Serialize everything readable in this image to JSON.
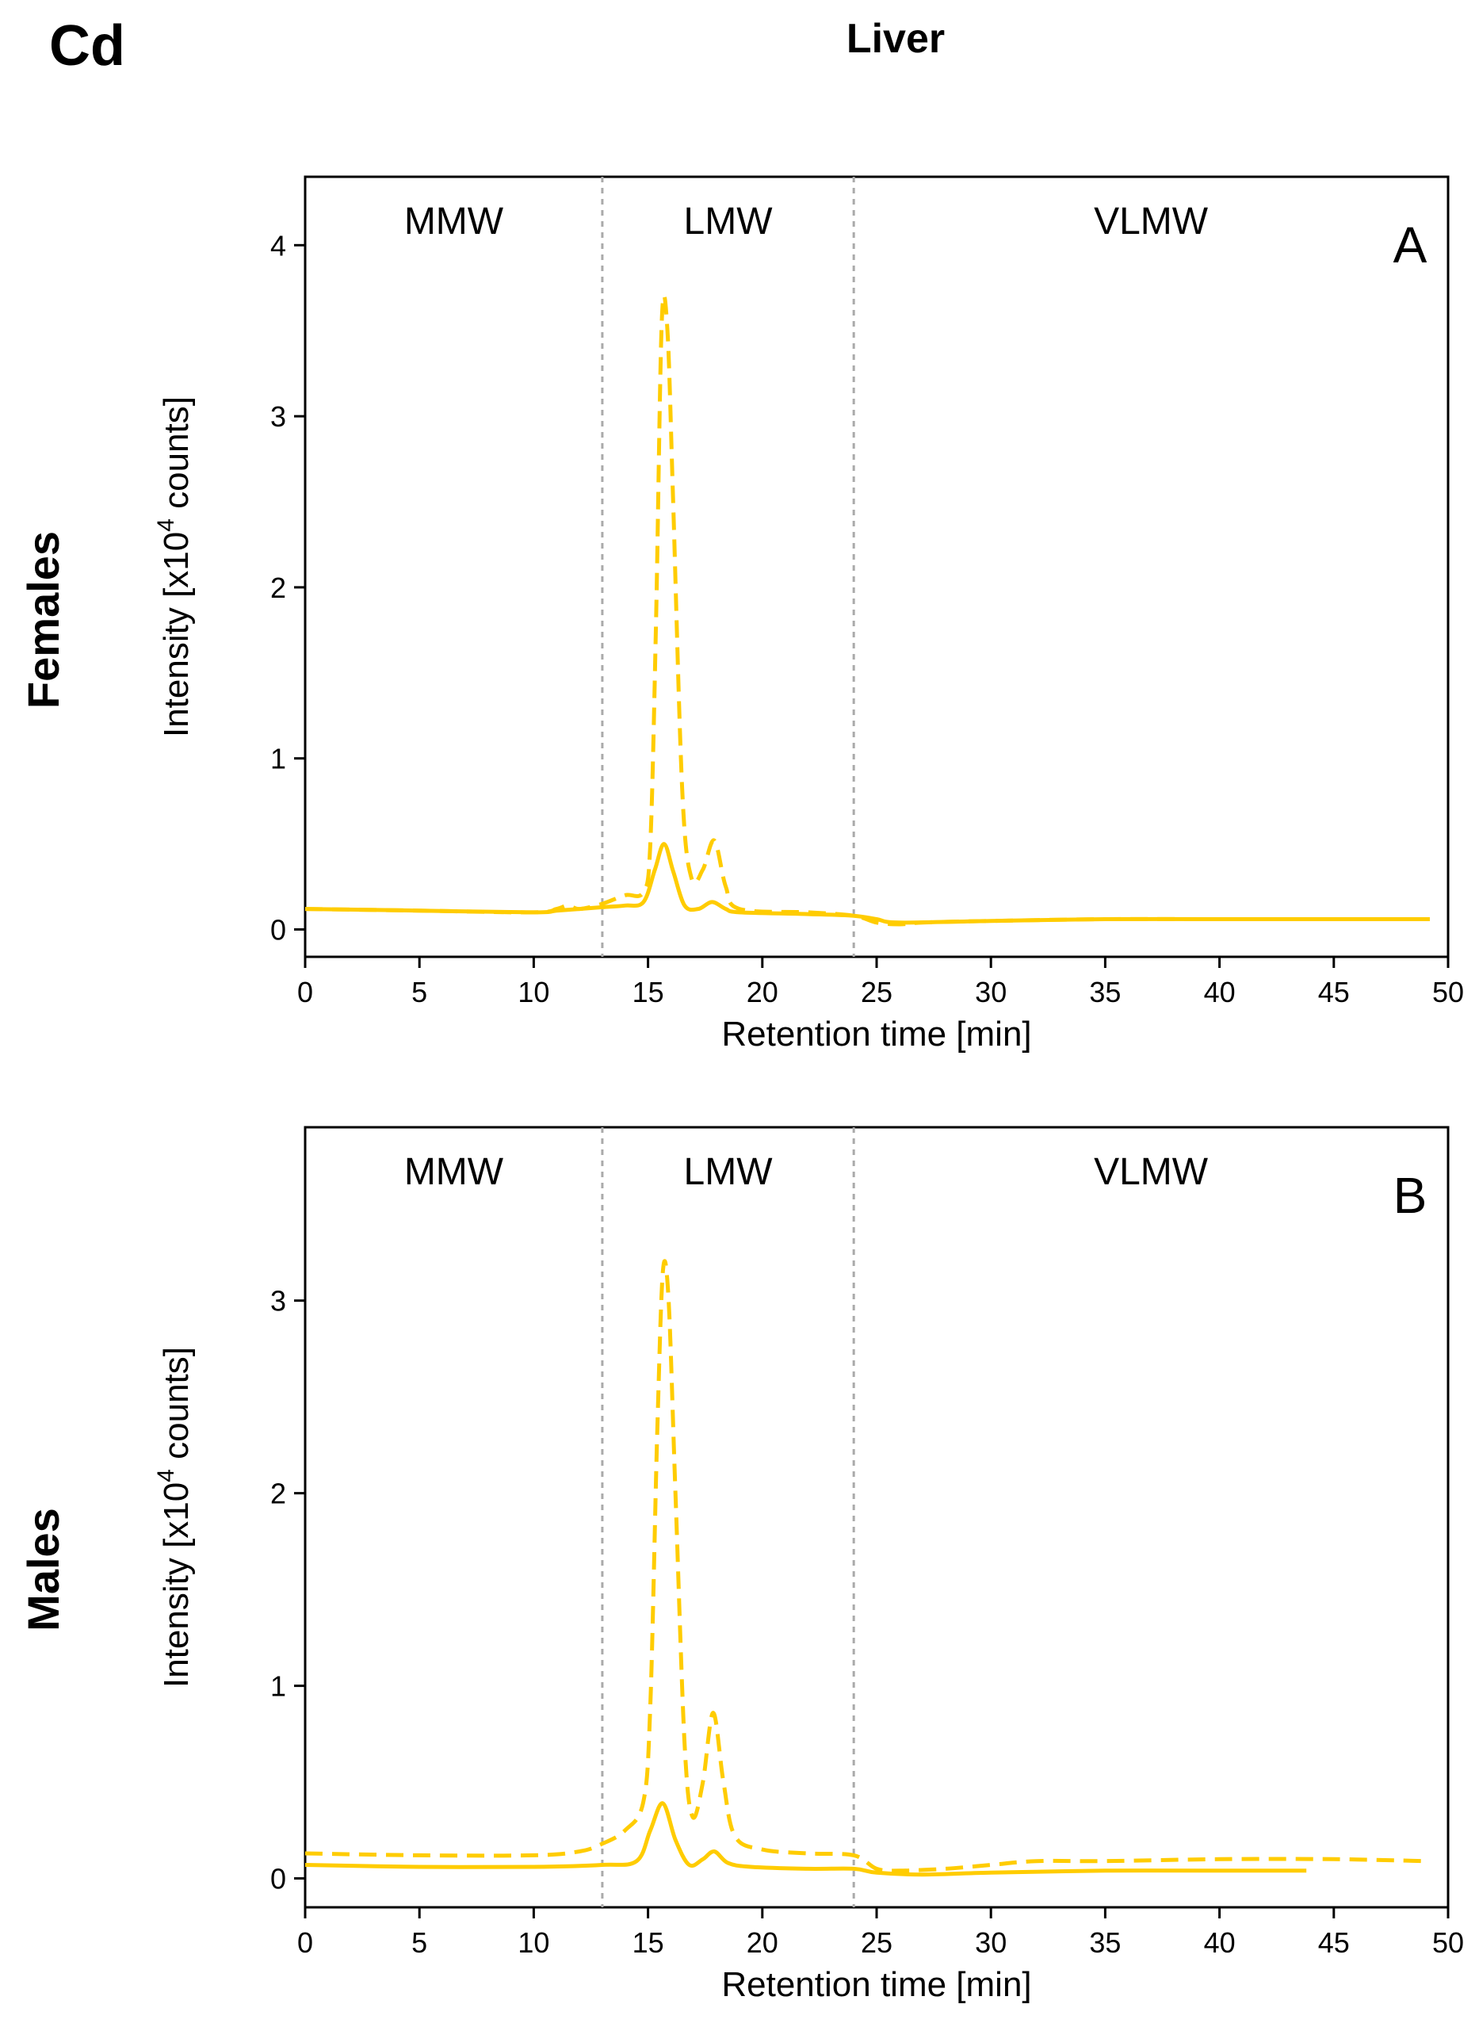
{
  "figure": {
    "element_label": "Cd",
    "organ_title": "Liver",
    "row_labels": [
      "Females",
      "Males"
    ]
  },
  "colors": {
    "line": "#FFCC00",
    "divider": "#AAAAAA",
    "axis": "#000000"
  },
  "chart_data": [
    {
      "type": "line",
      "panel_letter": "A",
      "xlabel": "Retention time [min]",
      "ylabel": "Intensity [x10",
      "ylabel_sup": "4",
      "ylabel_end": " counts]",
      "xlim": [
        0,
        50
      ],
      "ylim": [
        -0.16,
        4.4
      ],
      "x_ticks": [
        0,
        5,
        10,
        15,
        20,
        25,
        30,
        35,
        40,
        45,
        50
      ],
      "y_ticks": [
        0,
        1,
        2,
        3,
        4
      ],
      "regions": [
        {
          "label": "MMW",
          "from": 0,
          "to": 13
        },
        {
          "label": "LMW",
          "from": 13,
          "to": 24
        },
        {
          "label": "VLMW",
          "from": 24,
          "to": 50
        }
      ],
      "dividers": [
        13,
        24
      ],
      "series": [
        {
          "name": "solid",
          "style": "solid",
          "points": [
            [
              0,
              0.12
            ],
            [
              5,
              0.11
            ],
            [
              10,
              0.1
            ],
            [
              11,
              0.11
            ],
            [
              12,
              0.12
            ],
            [
              13,
              0.13
            ],
            [
              14,
              0.14
            ],
            [
              14.8,
              0.16
            ],
            [
              15.3,
              0.35
            ],
            [
              15.7,
              0.5
            ],
            [
              16.1,
              0.34
            ],
            [
              16.6,
              0.14
            ],
            [
              17.2,
              0.12
            ],
            [
              17.8,
              0.16
            ],
            [
              18.4,
              0.12
            ],
            [
              19,
              0.1
            ],
            [
              22,
              0.09
            ],
            [
              24,
              0.08
            ],
            [
              25,
              0.06
            ],
            [
              26,
              0.04
            ],
            [
              30,
              0.05
            ],
            [
              35,
              0.06
            ],
            [
              40,
              0.06
            ],
            [
              45,
              0.06
            ],
            [
              49.2,
              0.06
            ]
          ]
        },
        {
          "name": "dashed",
          "style": "dashed",
          "points": [
            [
              0,
              0.12
            ],
            [
              5,
              0.11
            ],
            [
              10,
              0.1
            ],
            [
              11,
              0.12
            ],
            [
              11.5,
              0.14
            ],
            [
              12,
              0.12
            ],
            [
              13,
              0.15
            ],
            [
              14,
              0.2
            ],
            [
              14.8,
              0.22
            ],
            [
              15.1,
              0.5
            ],
            [
              15.35,
              1.8
            ],
            [
              15.6,
              3.55
            ],
            [
              15.85,
              3.5
            ],
            [
              16.1,
              2.5
            ],
            [
              16.5,
              0.8
            ],
            [
              16.9,
              0.3
            ],
            [
              17.4,
              0.35
            ],
            [
              17.9,
              0.52
            ],
            [
              18.4,
              0.25
            ],
            [
              19,
              0.12
            ],
            [
              22,
              0.1
            ],
            [
              24,
              0.08
            ],
            [
              25,
              0.04
            ],
            [
              26,
              0.03
            ],
            [
              27,
              0.04
            ],
            [
              30,
              0.05
            ],
            [
              35,
              0.06
            ],
            [
              40,
              0.06
            ],
            [
              45,
              0.06
            ],
            [
              49.2,
              0.06
            ]
          ]
        }
      ]
    },
    {
      "type": "line",
      "panel_letter": "B",
      "xlabel": "Retention time [min]",
      "ylabel": "Intensity [x10",
      "ylabel_sup": "4",
      "ylabel_end": " counts]",
      "xlim": [
        0,
        50
      ],
      "ylim": [
        -0.15,
        3.9
      ],
      "x_ticks": [
        0,
        5,
        10,
        15,
        20,
        25,
        30,
        35,
        40,
        45,
        50
      ],
      "y_ticks": [
        0,
        1,
        2,
        3
      ],
      "regions": [
        {
          "label": "MMW",
          "from": 0,
          "to": 13
        },
        {
          "label": "LMW",
          "from": 13,
          "to": 24
        },
        {
          "label": "VLMW",
          "from": 24,
          "to": 50
        }
      ],
      "dividers": [
        13,
        24
      ],
      "series": [
        {
          "name": "solid",
          "style": "solid",
          "points": [
            [
              0,
              0.07
            ],
            [
              5,
              0.06
            ],
            [
              10,
              0.06
            ],
            [
              13,
              0.07
            ],
            [
              14.5,
              0.09
            ],
            [
              15.1,
              0.25
            ],
            [
              15.65,
              0.39
            ],
            [
              16.2,
              0.2
            ],
            [
              16.8,
              0.07
            ],
            [
              17.4,
              0.1
            ],
            [
              17.9,
              0.14
            ],
            [
              18.5,
              0.08
            ],
            [
              19.5,
              0.06
            ],
            [
              22,
              0.05
            ],
            [
              24,
              0.05
            ],
            [
              25,
              0.03
            ],
            [
              27,
              0.02
            ],
            [
              30,
              0.03
            ],
            [
              35,
              0.04
            ],
            [
              40,
              0.04
            ],
            [
              43.8,
              0.04
            ]
          ]
        },
        {
          "name": "dashed",
          "style": "dashed",
          "points": [
            [
              0,
              0.13
            ],
            [
              5,
              0.12
            ],
            [
              10,
              0.12
            ],
            [
              12,
              0.14
            ],
            [
              13,
              0.18
            ],
            [
              14,
              0.25
            ],
            [
              14.8,
              0.4
            ],
            [
              15.1,
              0.9
            ],
            [
              15.4,
              2.3
            ],
            [
              15.65,
              3.15
            ],
            [
              15.9,
              3.0
            ],
            [
              16.2,
              2.0
            ],
            [
              16.6,
              0.7
            ],
            [
              16.95,
              0.32
            ],
            [
              17.4,
              0.5
            ],
            [
              17.85,
              0.86
            ],
            [
              18.3,
              0.5
            ],
            [
              18.8,
              0.22
            ],
            [
              20,
              0.15
            ],
            [
              22,
              0.13
            ],
            [
              24,
              0.12
            ],
            [
              25,
              0.05
            ],
            [
              26,
              0.04
            ],
            [
              28,
              0.05
            ],
            [
              30,
              0.07
            ],
            [
              32,
              0.09
            ],
            [
              35,
              0.09
            ],
            [
              40,
              0.1
            ],
            [
              45,
              0.1
            ],
            [
              49,
              0.09
            ]
          ]
        }
      ]
    }
  ]
}
